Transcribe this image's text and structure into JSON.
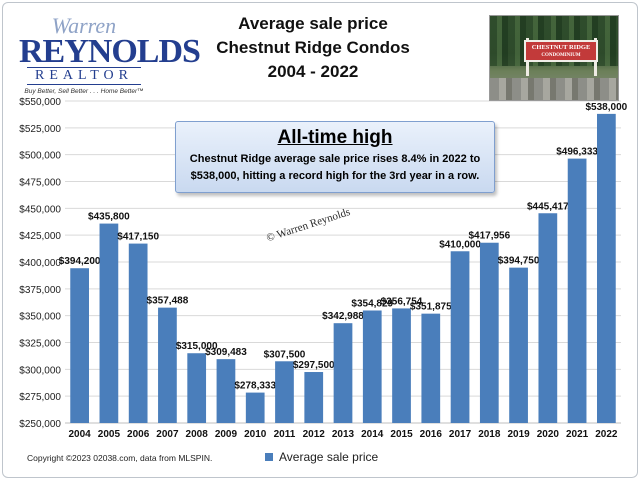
{
  "header": {
    "title_lines": [
      "Average sale price",
      "Chestnut Ridge Condos",
      "2004 - 2022"
    ]
  },
  "logo": {
    "line1": "Warren",
    "line2": "REYNOLDS",
    "line3": "REALTOR",
    "tagline": "Buy Better, Sell Better . . . Home Better™"
  },
  "photo": {
    "sign_line1": "CHESTNUT RIDGE",
    "sign_line2": "CONDOMINIUM"
  },
  "callout": {
    "heading": "All-time high",
    "body_line1": "Chestnut Ridge average sale price rises 8.4% in 2022 to",
    "body_line2": "$538,000, hitting a record high for the 3rd year in a row."
  },
  "watermark": "© Warren Reynolds",
  "footer": {
    "copyright": "Copyright ©2023 02038.com, data from MLSPIN."
  },
  "colors": {
    "bar": "#4a7ebb",
    "grid": "#d9d9d9",
    "text": "#222222"
  },
  "chart_data": {
    "type": "bar",
    "title": "Average sale price Chestnut Ridge Condos 2004 - 2022",
    "categories": [
      "2004",
      "2005",
      "2006",
      "2007",
      "2008",
      "2009",
      "2010",
      "2011",
      "2012",
      "2013",
      "2014",
      "2015",
      "2016",
      "2017",
      "2018",
      "2019",
      "2020",
      "2021",
      "2022"
    ],
    "series": [
      {
        "name": "Average sale price",
        "values": [
          394200,
          435800,
          417150,
          357488,
          315000,
          309483,
          278333,
          307500,
          297500,
          342988,
          354829,
          356754,
          351875,
          410000,
          417956,
          394750,
          445417,
          496333,
          538000
        ],
        "labels": [
          "$394,200",
          "$435,800",
          "$417,150",
          "$357,488",
          "$315,000",
          "$309,483",
          "$278,333",
          "$307,500",
          "$297,500",
          "$342,988",
          "$354,829",
          "$356,754",
          "$351,875",
          "$410,000",
          "$417,956",
          "$394,750",
          "$445,417",
          "$496,333",
          "$538,000"
        ]
      }
    ],
    "ylim": [
      250000,
      550000
    ],
    "yticks": [
      250000,
      275000,
      300000,
      325000,
      350000,
      375000,
      400000,
      425000,
      450000,
      475000,
      500000,
      525000,
      550000
    ],
    "ytick_labels": [
      "$250,000",
      "$275,000",
      "$300,000",
      "$325,000",
      "$350,000",
      "$375,000",
      "$400,000",
      "$425,000",
      "$450,000",
      "$475,000",
      "$500,000",
      "$525,000",
      "$550,000"
    ],
    "xlabel": "",
    "ylabel": "",
    "grid": true,
    "legend_position": "bottom"
  }
}
